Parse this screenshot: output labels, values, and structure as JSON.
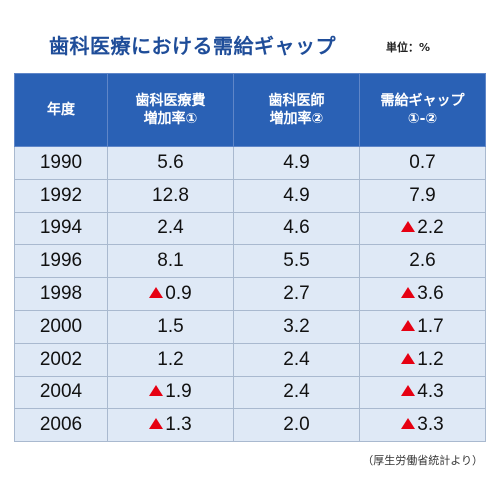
{
  "title": "歯科医療における需給ギャップ",
  "unit": "単位：%",
  "columns": [
    {
      "line1": "年度",
      "line2": ""
    },
    {
      "line1": "歯科医療費",
      "line2": "増加率①"
    },
    {
      "line1": "歯科医師",
      "line2": "増加率②"
    },
    {
      "line1": "需給ギャップ",
      "line2": "①-②"
    }
  ],
  "rows": [
    {
      "year": "1990",
      "cells": [
        {
          "value": "5.6",
          "neg": false
        },
        {
          "value": "4.9",
          "neg": false
        },
        {
          "value": "0.7",
          "neg": false
        }
      ]
    },
    {
      "year": "1992",
      "cells": [
        {
          "value": "12.8",
          "neg": false
        },
        {
          "value": "4.9",
          "neg": false
        },
        {
          "value": "7.9",
          "neg": false
        }
      ]
    },
    {
      "year": "1994",
      "cells": [
        {
          "value": "2.4",
          "neg": false
        },
        {
          "value": "4.6",
          "neg": false
        },
        {
          "value": "2.2",
          "neg": true
        }
      ]
    },
    {
      "year": "1996",
      "cells": [
        {
          "value": "8.1",
          "neg": false
        },
        {
          "value": "5.5",
          "neg": false
        },
        {
          "value": "2.6",
          "neg": false
        }
      ]
    },
    {
      "year": "1998",
      "cells": [
        {
          "value": "0.9",
          "neg": true
        },
        {
          "value": "2.7",
          "neg": false
        },
        {
          "value": "3.6",
          "neg": true
        }
      ]
    },
    {
      "year": "2000",
      "cells": [
        {
          "value": "1.5",
          "neg": false
        },
        {
          "value": "3.2",
          "neg": false
        },
        {
          "value": "1.7",
          "neg": true
        }
      ]
    },
    {
      "year": "2002",
      "cells": [
        {
          "value": "1.2",
          "neg": false
        },
        {
          "value": "2.4",
          "neg": false
        },
        {
          "value": "1.2",
          "neg": true
        }
      ]
    },
    {
      "year": "2004",
      "cells": [
        {
          "value": "1.9",
          "neg": true
        },
        {
          "value": "2.4",
          "neg": false
        },
        {
          "value": "4.3",
          "neg": true
        }
      ]
    },
    {
      "year": "2006",
      "cells": [
        {
          "value": "1.3",
          "neg": true
        },
        {
          "value": "2.0",
          "neg": false
        },
        {
          "value": "3.3",
          "neg": true
        }
      ]
    }
  ],
  "source": "（厚生労働省統計より）",
  "colors": {
    "header_bg": "#2a61b5",
    "title": "#1f4d99",
    "cell_bg": "#dfe9f6",
    "negative": "#e60012"
  }
}
